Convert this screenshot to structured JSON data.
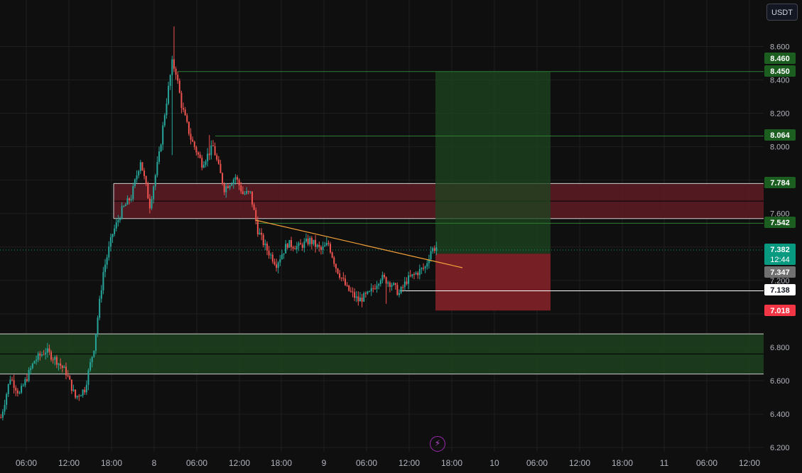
{
  "currency_button": "USDT",
  "chart_data": {
    "type": "candlestick",
    "colors": {
      "up": "#26a69a",
      "down": "#ef5350",
      "background": "#0f0f0f",
      "grid": "#1f1f1f",
      "trendline": "#f7a23a",
      "profit_zone": "#1e4620",
      "loss_zone": "#7c2227",
      "supply_zone": "#5a1c22",
      "demand_zone": "#1c3c1e",
      "label_green": "#1b5e20",
      "label_red": "#f23645",
      "label_teal": "#089981",
      "label_gray": "#707070",
      "label_white": "#ffffff"
    },
    "y_axis": {
      "ylim": [
        6.2,
        8.75
      ],
      "ticks": [
        "8.600",
        "8.400",
        "8.200",
        "8.000",
        "7.600",
        "7.200",
        "6.800",
        "6.600",
        "6.400",
        "6.200"
      ]
    },
    "x_axis": {
      "tick_labels": [
        "06:00",
        "12:00",
        "18:00",
        "8",
        "06:00",
        "12:00",
        "18:00",
        "9",
        "06:00",
        "12:00",
        "18:00",
        "10",
        "06:00",
        "12:00",
        "18:00",
        "11",
        "06:00",
        "12:00"
      ]
    },
    "anchors": [
      [
        0,
        6.38
      ],
      [
        5,
        6.62
      ],
      [
        10,
        6.52
      ],
      [
        18,
        6.72
      ],
      [
        24,
        6.78
      ],
      [
        30,
        6.72
      ],
      [
        35,
        6.65
      ],
      [
        40,
        6.5
      ],
      [
        45,
        6.55
      ],
      [
        50,
        6.8
      ],
      [
        55,
        7.25
      ],
      [
        60,
        7.48
      ],
      [
        65,
        7.62
      ],
      [
        70,
        7.7
      ],
      [
        75,
        7.92
      ],
      [
        80,
        7.65
      ],
      [
        85,
        7.95
      ],
      [
        88,
        8.2
      ],
      [
        92,
        8.5
      ],
      [
        94,
        8.45
      ],
      [
        97,
        8.25
      ],
      [
        102,
        8.05
      ],
      [
        108,
        7.9
      ],
      [
        114,
        8.0
      ],
      [
        120,
        7.75
      ],
      [
        126,
        7.82
      ],
      [
        130,
        7.72
      ],
      [
        134,
        7.72
      ],
      [
        138,
        7.5
      ],
      [
        142,
        7.4
      ],
      [
        148,
        7.3
      ],
      [
        154,
        7.42
      ],
      [
        160,
        7.4
      ],
      [
        166,
        7.44
      ],
      [
        172,
        7.38
      ],
      [
        176,
        7.42
      ],
      [
        180,
        7.28
      ],
      [
        186,
        7.15
      ],
      [
        192,
        7.08
      ],
      [
        198,
        7.12
      ],
      [
        204,
        7.22
      ],
      [
        210,
        7.18
      ],
      [
        214,
        7.12
      ],
      [
        218,
        7.2
      ],
      [
        224,
        7.25
      ],
      [
        228,
        7.28
      ],
      [
        231,
        7.38
      ],
      [
        234,
        7.4
      ]
    ],
    "spikes": [
      [
        93,
        8.72
      ],
      [
        112,
        8.07
      ],
      [
        207,
        7.06
      ],
      [
        92,
        7.95
      ]
    ],
    "price_lines": [
      {
        "price": 8.46,
        "label": "8.460",
        "style": "green"
      },
      {
        "price": 8.45,
        "label": "8.450",
        "style": "green"
      },
      {
        "price": 8.064,
        "label": "8.064",
        "style": "green"
      },
      {
        "price": 7.784,
        "label": "7.784",
        "style": "green"
      },
      {
        "price": 7.542,
        "label": "7.542",
        "style": "green"
      },
      {
        "price": 7.382,
        "label": "7.382",
        "label2": "12:44",
        "style": "teal"
      },
      {
        "price": 7.347,
        "label": "7.347",
        "style": "gray"
      },
      {
        "price": 7.138,
        "label": "7.138",
        "style": "white"
      },
      {
        "price": 7.018,
        "label": "7.018",
        "style": "red"
      }
    ],
    "zones": {
      "supply": [
        7.57,
        7.78
      ],
      "demand": [
        6.64,
        6.88
      ],
      "position_profit": [
        7.36,
        8.45
      ],
      "position_loss": [
        7.02,
        7.36
      ]
    }
  }
}
